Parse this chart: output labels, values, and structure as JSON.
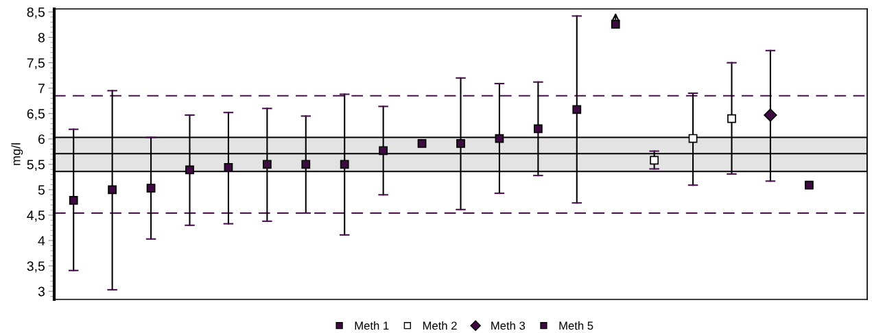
{
  "chart_data": {
    "type": "scatter",
    "ylabel": "mg/l",
    "categories": [
      null,
      null,
      null,
      null,
      null,
      null,
      null,
      null,
      null,
      null,
      null,
      null,
      null,
      null,
      null,
      null,
      null,
      null,
      null,
      null,
      null
    ],
    "series": [
      {
        "name": "Meth 1",
        "color": "#3d0a42",
        "marker": "square",
        "values": [
          4.79,
          5.0,
          5.03,
          5.39,
          5.44,
          5.5,
          5.5,
          5.5,
          5.77,
          5.91,
          5.91,
          6.01,
          6.2,
          6.58,
          8.26,
          null,
          null,
          null,
          null,
          null,
          null
        ],
        "errors": [
          [
            3.41,
            6.19
          ],
          [
            3.03,
            6.95
          ],
          [
            4.03,
            6.03
          ],
          [
            4.3,
            6.47
          ],
          [
            4.33,
            6.52
          ],
          [
            4.38,
            6.6
          ],
          [
            4.54,
            6.45
          ],
          [
            4.11,
            6.88
          ],
          [
            4.9,
            6.64
          ],
          null,
          [
            4.61,
            7.2
          ],
          [
            4.93,
            7.09
          ],
          [
            5.28,
            7.12
          ],
          [
            4.74,
            8.42
          ],
          null,
          null,
          null,
          null,
          null,
          null,
          null
        ]
      },
      {
        "name": "Meth 2",
        "color": "#ffffff",
        "marker": "square",
        "values": [
          null,
          null,
          null,
          null,
          null,
          null,
          null,
          null,
          null,
          null,
          null,
          null,
          null,
          null,
          null,
          5.58,
          6.01,
          6.4,
          null,
          null,
          null
        ],
        "errors": [
          null,
          null,
          null,
          null,
          null,
          null,
          null,
          null,
          null,
          null,
          null,
          null,
          null,
          null,
          null,
          [
            5.41,
            5.76
          ],
          [
            5.09,
            6.9
          ],
          [
            5.31,
            7.5
          ],
          null,
          null,
          null
        ]
      },
      {
        "name": "Meth 3",
        "color": "#3d0a42",
        "marker": "diamond",
        "values": [
          null,
          null,
          null,
          null,
          null,
          null,
          null,
          null,
          null,
          null,
          null,
          null,
          null,
          null,
          null,
          null,
          null,
          null,
          6.47,
          null,
          null
        ],
        "errors": [
          null,
          null,
          null,
          null,
          null,
          null,
          null,
          null,
          null,
          null,
          null,
          null,
          null,
          null,
          null,
          null,
          null,
          null,
          [
            5.17,
            7.74
          ],
          null,
          null
        ]
      },
      {
        "name": "Meth 5",
        "color": "#3d0a42",
        "marker": "square",
        "values": [
          null,
          null,
          null,
          null,
          null,
          null,
          null,
          null,
          null,
          null,
          null,
          null,
          null,
          null,
          null,
          null,
          null,
          null,
          null,
          5.09,
          null
        ]
      }
    ],
    "ylim": [
      2.84,
      8.56
    ],
    "yticks": [
      3,
      {
        "value": 3.5,
        "label": "3,5"
      },
      4,
      {
        "value": 4.5,
        "label": "4,5"
      },
      5,
      {
        "value": 5.5,
        "label": "5,5"
      },
      6,
      {
        "value": 6.5,
        "label": "6,5"
      },
      7,
      {
        "value": 7.5,
        "label": "7,5"
      },
      8,
      {
        "value": 8.5,
        "label": "8,5"
      }
    ],
    "bands": [
      {
        "axis": "y",
        "from": 5.36,
        "to": 6.03,
        "color": "#e3e3e3"
      }
    ],
    "ref_lines": [
      {
        "axis": "y",
        "value": 5.71,
        "color": "#000000",
        "line_style": "solid"
      },
      {
        "axis": "y",
        "value": 6.85,
        "color": "#4b0f50",
        "line_style": "dashed"
      },
      {
        "axis": "y",
        "value": 4.54,
        "color": "#4b0f50",
        "line_style": "dashed"
      }
    ],
    "grid": false,
    "legend": "bottom"
  }
}
